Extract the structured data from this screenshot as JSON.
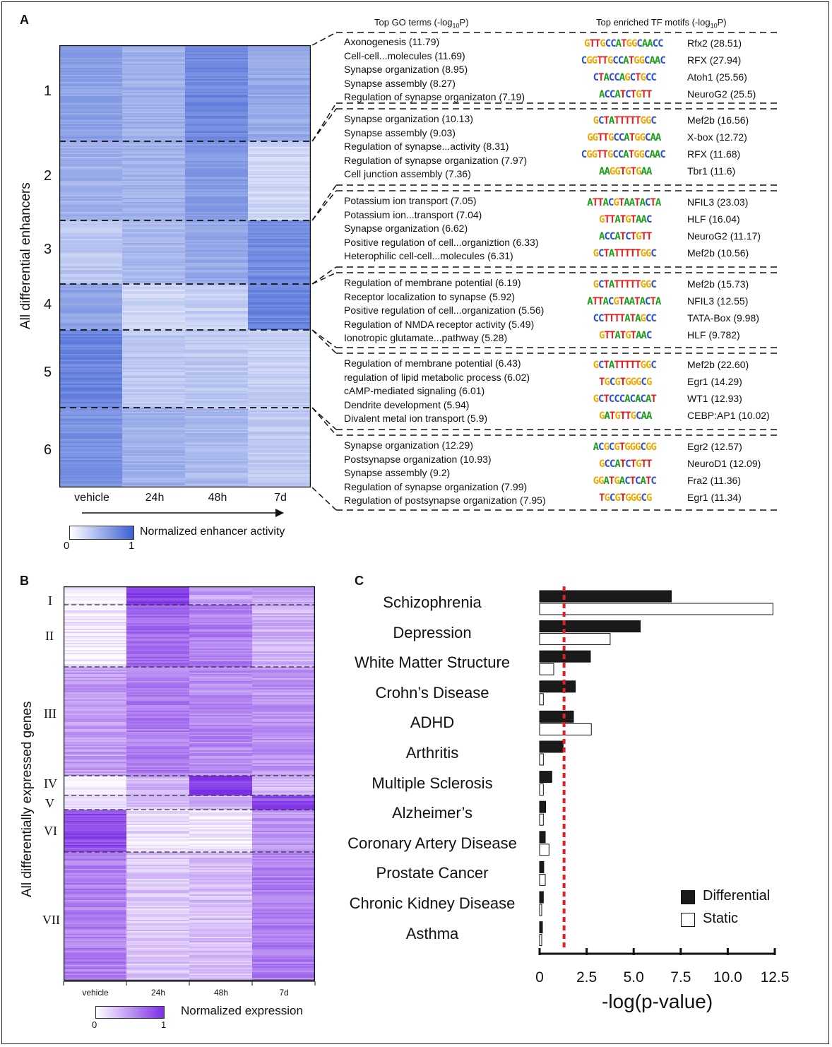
{
  "panelA": {
    "label": "A",
    "y_label": "All differential enhancers",
    "header_go": "Top GO terms (-log",
    "header_go_sub": "10",
    "header_go_end": "P)",
    "header_tf": "Top enriched TF motifs (-log",
    "header_tf_sub": "10",
    "header_tf_end": "P)",
    "columns": [
      "vehicle",
      "24h",
      "48h",
      "7d"
    ],
    "legend_title": "Normalized enhancer activity",
    "legend_min": "0",
    "legend_max": "1",
    "clusters": [
      {
        "id": "1",
        "go": [
          "Axonogenesis (11.79)",
          "Cell-cell...molecules (11.69)",
          "Synapse organization (8.95)",
          "Synapse assembly (8.27)",
          "Regulation of synapse organizaton (7.19)"
        ],
        "motifs": [
          {
            "seq": "GTTGCCATGGCAACC",
            "tf": "Rfx2 (28.51)"
          },
          {
            "seq": "CGGTTGCCATGGCAAC",
            "tf": "RFX (27.94)"
          },
          {
            "seq": "CTACCAGCTGCC",
            "tf": "Atoh1 (25.56)"
          },
          {
            "seq": "ACCATCTGTT",
            "tf": "NeuroG2 (25.5)"
          }
        ]
      },
      {
        "id": "2",
        "go": [
          "Synapse organization (10.13)",
          "Synapse assembly (9.03)",
          "Regulation of synapse...activity (8.31)",
          "Regulation of synapse organization (7.97)",
          "Cell junction assembly (7.36)"
        ],
        "motifs": [
          {
            "seq": "GCTATTTTTGGC",
            "tf": "Mef2b (16.56)"
          },
          {
            "seq": "GGTTGCCATGGCAA",
            "tf": "X-box (12.72)"
          },
          {
            "seq": "CGGTTGCCATGGCAAC",
            "tf": "RFX (11.68)"
          },
          {
            "seq": "AAGGTGTGAA",
            "tf": "Tbr1 (11.6)"
          }
        ]
      },
      {
        "id": "3",
        "go": [
          "Potassium ion transport (7.05)",
          "Potassium ion...transport (7.04)",
          "Synapse organization (6.62)",
          "Positive regulation of cell...organiztion (6.33)",
          "Heterophilic cell-cell...molecules (6.31)"
        ],
        "motifs": [
          {
            "seq": "ATTACGTAATACTA",
            "tf": "NFIL3 (23.03)"
          },
          {
            "seq": "GTTATGTAAC",
            "tf": "HLF (16.04)"
          },
          {
            "seq": "ACCATCTGTT",
            "tf": "NeuroG2 (11.17)"
          },
          {
            "seq": "GCTATTTTTGGC",
            "tf": "Mef2b (10.56)"
          }
        ]
      },
      {
        "id": "4",
        "go": [
          "Regulation of membrane potential (6.19)",
          "Receptor localization to synapse (5.92)",
          "Positive regulation of cell...organization (5.56)",
          "Regulation of NMDA receptor activity (5.49)",
          "Ionotropic glutamate...pathway (5.28)"
        ],
        "motifs": [
          {
            "seq": "GCTATTTTTGGC",
            "tf": "Mef2b (15.73)"
          },
          {
            "seq": "ATTACGTAATACTA",
            "tf": "NFIL3 (12.55)"
          },
          {
            "seq": "CCTTTTATAGCC",
            "tf": "TATA-Box (9.98)"
          },
          {
            "seq": "GTTATGTAAC",
            "tf": "HLF (9.782)"
          }
        ]
      },
      {
        "id": "5",
        "go": [
          "Regulation of membrane potential (6.43)",
          "regulation of lipid metabolic process (6.02)",
          "cAMP-mediated signaling (6.01)",
          "Dendrite development (5.94)",
          "Divalent metal ion transport (5.9)"
        ],
        "motifs": [
          {
            "seq": "GCTATTTTTGGC",
            "tf": "Mef2b (22.60)"
          },
          {
            "seq": "TGCGTGGGCG",
            "tf": "Egr1 (14.29)"
          },
          {
            "seq": "GCTCCCACACAT",
            "tf": "WT1 (12.93)"
          },
          {
            "seq": "GATGTTGCAA",
            "tf": "CEBP:AP1 (10.02)"
          }
        ]
      },
      {
        "id": "6",
        "go": [
          "Synapse organization (12.29)",
          "Postsynapse organization (10.93)",
          "Synapse assembly (9.2)",
          "Regulation of synapse organization (7.99)",
          "Regulation of postsynapse organization (7.95)"
        ],
        "motifs": [
          {
            "seq": "ACGCGTGGGCGG",
            "tf": "Egr2 (12.57)"
          },
          {
            "seq": "GCCATCTGTT",
            "tf": "NeuroD1 (12.09)"
          },
          {
            "seq": "GGATGACTCATC",
            "tf": "Fra2 (11.36)"
          },
          {
            "seq": "TGCGTGGGCG",
            "tf": "Egr1 (11.34)"
          }
        ]
      }
    ]
  },
  "panelB": {
    "label": "B",
    "y_label": "All differentially expressed genes",
    "columns": [
      "vehicle",
      "24h",
      "48h",
      "7d"
    ],
    "clusters": [
      "I",
      "II",
      "III",
      "IV",
      "V",
      "VI",
      "VII"
    ],
    "legend_title": "Normalized expression",
    "legend_min": "0",
    "legend_max": "1"
  },
  "panelC": {
    "label": "C",
    "chart_data": {
      "type": "bar",
      "orientation": "horizontal",
      "categories": [
        "Schizophrenia",
        "Depression",
        "White Matter Structure",
        "Crohn’s Disease",
        "ADHD",
        "Arthritis",
        "Multiple Sclerosis",
        "Alzheimer’s",
        "Coronary Artery Disease",
        "Prostate Cancer",
        "Chronic Kidney Disease",
        "Asthma"
      ],
      "series": [
        {
          "name": "Differential",
          "color": "#1a1a1a",
          "values": [
            7.0,
            5.35,
            2.7,
            1.9,
            1.8,
            1.25,
            0.65,
            0.32,
            0.3,
            0.22,
            0.2,
            0.15
          ]
        },
        {
          "name": "Static",
          "color": "#ffffff",
          "values": [
            12.4,
            3.75,
            0.75,
            0.2,
            2.75,
            0.2,
            0.2,
            0.2,
            0.5,
            0.3,
            0.1,
            0.1
          ]
        }
      ],
      "threshold": 1.3,
      "threshold_color": "#e02020",
      "xlabel": "-log(p-value)",
      "xlim": [
        0,
        12.5
      ],
      "xticks": [
        "0",
        "2.5",
        "5.0",
        "7.5",
        "10.0",
        "12.5"
      ]
    }
  },
  "colors": {
    "enhancer_low": "#eef1fb",
    "enhancer_high": "#3b5fd4",
    "expr_low": "#f7f2fd",
    "expr_high": "#7c2ee6"
  }
}
